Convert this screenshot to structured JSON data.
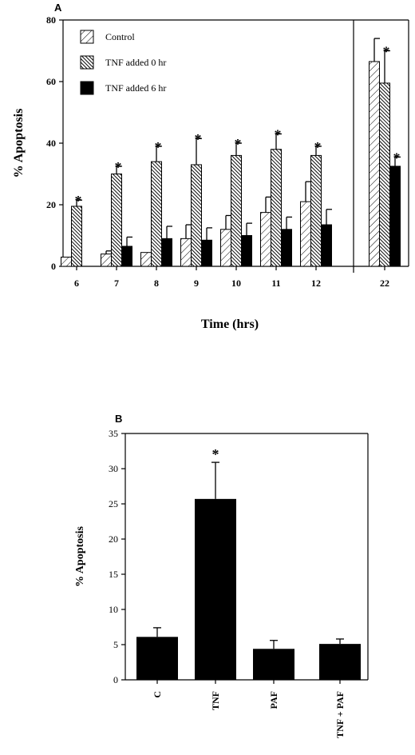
{
  "chart_data": [
    {
      "panel": "A",
      "type": "bar",
      "xlabel": "Time (hrs)",
      "ylabel": "% Apoptosis",
      "ylim": [
        0,
        80
      ],
      "yticks": [
        0,
        20,
        40,
        60,
        80
      ],
      "categories": [
        "6",
        "7",
        "8",
        "9",
        "10",
        "11",
        "12",
        "22"
      ],
      "legend_position": "top-left",
      "series": [
        {
          "name": "Control",
          "pattern": "light-diagonal-hatch",
          "values": [
            3,
            4,
            4.5,
            9,
            12,
            17.5,
            21,
            66.5
          ],
          "errors": [
            0,
            1,
            0,
            4.5,
            4.5,
            5,
            6.5,
            7.5
          ],
          "significant": [
            false,
            false,
            false,
            false,
            false,
            false,
            false,
            false
          ]
        },
        {
          "name": "TNF added 0 hr",
          "pattern": "dense-crosshatch",
          "values": [
            19.5,
            30,
            34,
            33,
            36,
            38,
            36,
            59.5
          ],
          "errors": [
            2,
            2.5,
            5,
            8.5,
            4,
            5,
            3,
            10.5
          ],
          "significant": [
            true,
            true,
            true,
            true,
            true,
            true,
            true,
            true
          ]
        },
        {
          "name": "TNF added 6 hr",
          "pattern": "solid",
          "values": [
            null,
            6.5,
            9,
            8.5,
            10,
            12,
            13.5,
            32.5
          ],
          "errors": [
            0,
            3,
            4,
            4,
            4,
            4,
            5,
            3
          ],
          "significant": [
            false,
            false,
            false,
            false,
            false,
            false,
            false,
            true
          ]
        }
      ],
      "annotation_symbol": "*"
    },
    {
      "panel": "B",
      "type": "bar",
      "xlabel": "",
      "ylabel": "% Apoptosis",
      "ylim": [
        0,
        35
      ],
      "yticks": [
        0,
        5,
        10,
        15,
        20,
        25,
        30,
        35
      ],
      "categories": [
        "C",
        "TNF",
        "PAF",
        "TNF + PAF"
      ],
      "series": [
        {
          "values": [
            6.1,
            25.7,
            4.4,
            5.1
          ],
          "errors": [
            1.3,
            5.2,
            1.2,
            0.7
          ],
          "significant": [
            false,
            true,
            false,
            false
          ]
        }
      ],
      "annotation_symbol": "*"
    }
  ]
}
